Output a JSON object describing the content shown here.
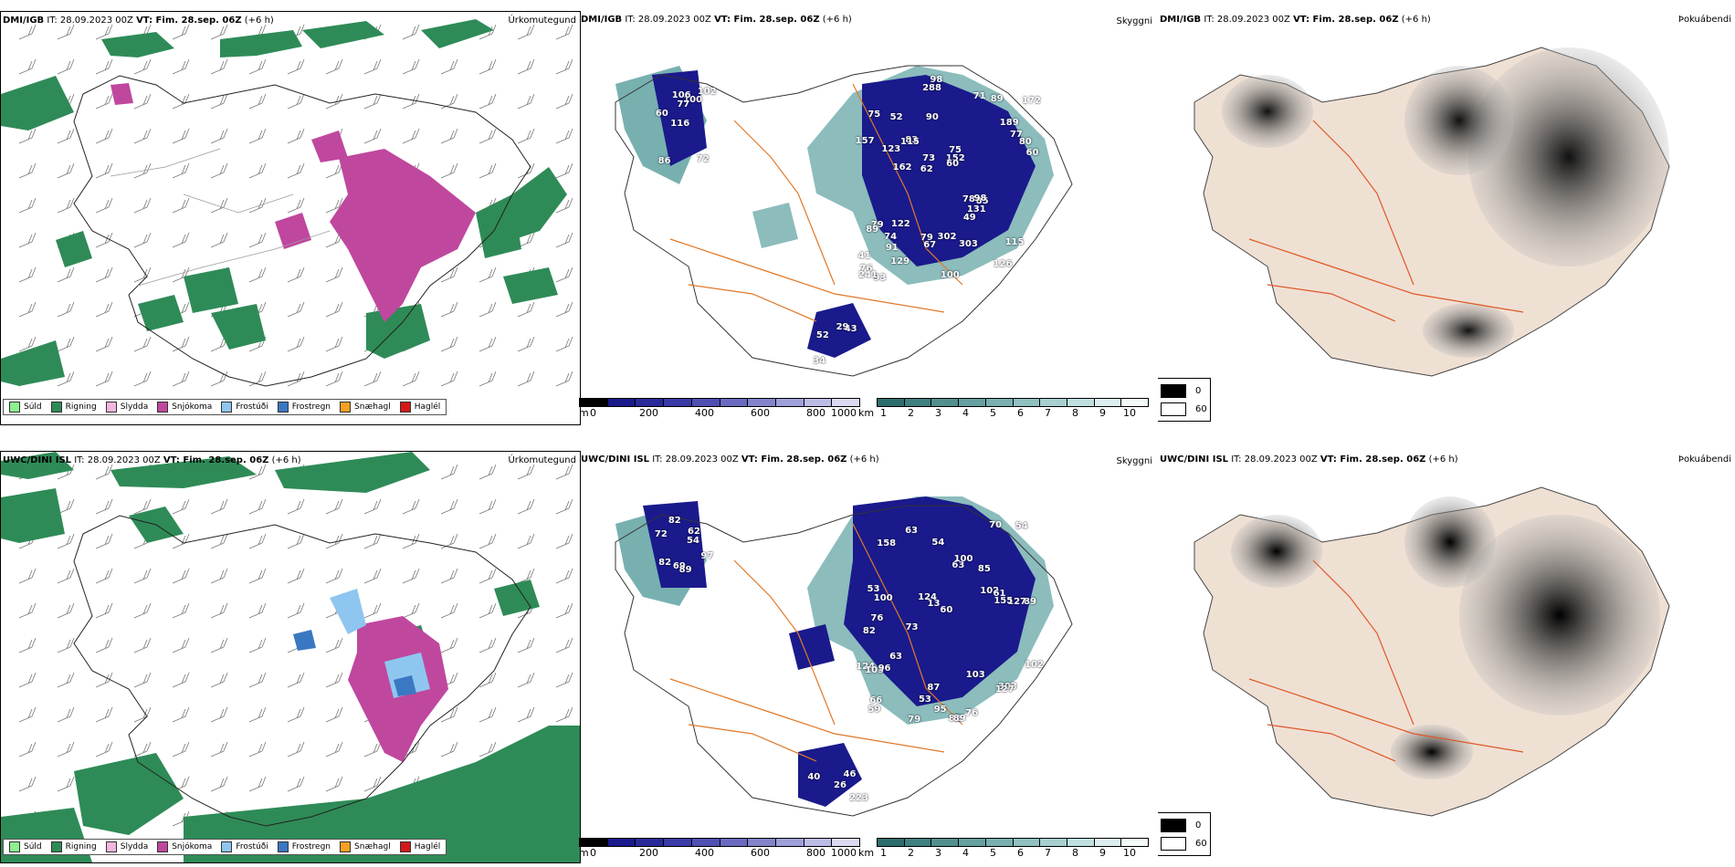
{
  "panels": {
    "top": {
      "precip": {
        "model": "DMI/IGB",
        "rest": " IT: 28.09.2023 00Z ",
        "vt": "VT: Fim. 28.sep. 06Z",
        "step": " (+6 h)",
        "title": "Úrkomutegund"
      },
      "vis": {
        "model": "DMI/IGB",
        "rest": " IT: 28.09.2023 00Z ",
        "vt": "VT: Fim. 28.sep. 06Z",
        "step": " (+6 h)",
        "title": "Skyggni",
        "labels": [
          "72",
          "60",
          "102",
          "116",
          "100",
          "86",
          "106",
          "77",
          "79",
          "83",
          "41",
          "91",
          "90",
          "75",
          "85",
          "75",
          "288",
          "60",
          "78",
          "77",
          "62",
          "79",
          "73",
          "52",
          "71",
          "122",
          "126",
          "115",
          "98",
          "100",
          "115",
          "123",
          "49",
          "129",
          "80",
          "152",
          "76",
          "67",
          "60",
          "89",
          "189",
          "172",
          "131",
          "303",
          "74",
          "93",
          "241",
          "302",
          "89",
          "98",
          "162",
          "157",
          "52",
          "43",
          "34",
          "29"
        ]
      },
      "fog": {
        "model": "DMI/IGB",
        "rest": " IT: 28.09.2023 00Z ",
        "vt": "VT: Fim. 28.sep. 06Z",
        "step": " (+6 h)",
        "title": "Þokuábendi"
      }
    },
    "bottom": {
      "precip": {
        "model": "UWC/DINI ISL",
        "rest": " IT: 28.09.2023 00Z ",
        "vt": "VT: Fim. 28.sep. 06Z",
        "step": " (+6 h)",
        "title": "Úrkomutegund"
      },
      "vis": {
        "model": "UWC/DINI ISL",
        "rest": " IT: 28.09.2023 00Z ",
        "vt": "VT: Fim. 28.sep. 06Z",
        "step": " (+6 h)",
        "title": "Skyggni",
        "labels": [
          "82",
          "62",
          "97",
          "69",
          "89",
          "82",
          "72",
          "54",
          "82",
          "63",
          "60",
          "59",
          "63",
          "73",
          "82",
          "89",
          "87",
          "70",
          "102",
          "63",
          "100",
          "76",
          "89",
          "127",
          "124",
          "53",
          "13",
          "155",
          "303",
          "103",
          "127",
          "100",
          "96",
          "124",
          "103",
          "102",
          "61",
          "53",
          "54",
          "54",
          "66",
          "79",
          "76",
          "158",
          "95",
          "85",
          "223",
          "46",
          "40",
          "26"
        ]
      },
      "fog": {
        "model": "UWC/DINI ISL",
        "rest": " IT: 28.09.2023 00Z ",
        "vt": "VT: Fim. 28.sep. 06Z",
        "step": " (+6 h)",
        "title": "Þokuábendi"
      }
    }
  },
  "precip_legend": [
    {
      "label": "Súld",
      "color": "#8ef08e"
    },
    {
      "label": "Rigning",
      "color": "#2e8b57"
    },
    {
      "label": "Slydda",
      "color": "#f4b6dc"
    },
    {
      "label": "Snjókoma",
      "color": "#c0479e"
    },
    {
      "label": "Frostúði",
      "color": "#8ec6f0"
    },
    {
      "label": "Frostregn",
      "color": "#3a78c2"
    },
    {
      "label": "Snæhagl",
      "color": "#f5a020"
    },
    {
      "label": "Haglél",
      "color": "#d41818"
    }
  ],
  "height_scale": {
    "unit": "m",
    "ticks": [
      "0",
      "200",
      "400",
      "600",
      "800",
      "1000"
    ]
  },
  "vis_scale": {
    "unit": "km",
    "ticks": [
      "1",
      "2",
      "3",
      "4",
      "5",
      "6",
      "7",
      "8",
      "9",
      "10"
    ]
  },
  "fog_legend": {
    "values": [
      "0",
      "60"
    ]
  },
  "colors": {
    "navy": "#1a1a8c",
    "teal": "#3f8f8f",
    "orange": "#e07828",
    "rain": "#2e8b57",
    "snow": "#c0479e"
  }
}
